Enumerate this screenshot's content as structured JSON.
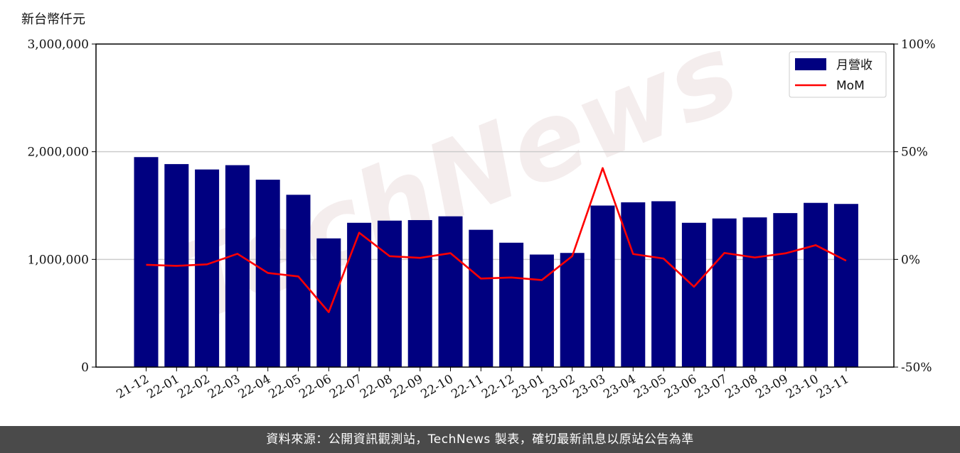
{
  "chart_data": {
    "type": "bar",
    "y_unit": "新台幣仟元",
    "categories": [
      "21-12",
      "22-01",
      "22-02",
      "22-03",
      "22-04",
      "22-05",
      "22-06",
      "22-07",
      "22-08",
      "22-09",
      "22-10",
      "22-11",
      "22-12",
      "23-01",
      "23-02",
      "23-03",
      "23-04",
      "23-05",
      "23-06",
      "23-07",
      "23-08",
      "23-09",
      "23-10",
      "23-11"
    ],
    "series": [
      {
        "name": "月營收",
        "type": "bar",
        "axis": "left",
        "color": "#000080",
        "values": [
          1950000,
          1885000,
          1835000,
          1875000,
          1740000,
          1600000,
          1195000,
          1340000,
          1360000,
          1365000,
          1400000,
          1275000,
          1155000,
          1045000,
          1060000,
          1500000,
          1530000,
          1540000,
          1340000,
          1380000,
          1390000,
          1430000,
          1525000,
          1515000
        ]
      },
      {
        "name": "MoM",
        "type": "line",
        "axis": "right",
        "color": "#ff0000",
        "values": [
          -2.5,
          -3.0,
          -2.3,
          2.6,
          -6.3,
          -7.9,
          -24.5,
          12.4,
          1.5,
          0.7,
          2.9,
          -8.9,
          -8.4,
          -9.6,
          1.5,
          42.4,
          2.5,
          0.4,
          -12.7,
          3.0,
          0.9,
          2.8,
          6.6,
          -0.6
        ]
      }
    ],
    "ylim_left": [
      0,
      3000000
    ],
    "yticks_left": [
      "0",
      "1,000,000",
      "2,000,000",
      "3,000,000"
    ],
    "ylim_right": [
      -50,
      100
    ],
    "yticks_right": [
      "-50%",
      "0%",
      "50%",
      "100%"
    ],
    "grid": "horizontal",
    "legend": "top-right"
  },
  "watermark": "TechNews",
  "footer": "資料來源：公開資訊觀測站，TechNews 製表，確切最新訊息以原站公告為準"
}
